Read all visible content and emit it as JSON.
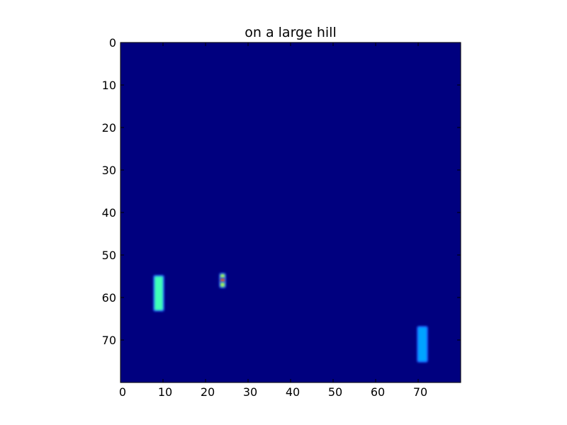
{
  "chart_data": {
    "type": "heatmap",
    "title": "on a large hill",
    "xlabel": "",
    "ylabel": "",
    "xlim": [
      0,
      80
    ],
    "ylim": [
      80,
      0
    ],
    "grid": false,
    "x_ticks": [
      0,
      10,
      20,
      30,
      40,
      50,
      60,
      70
    ],
    "y_ticks": [
      0,
      10,
      20,
      30,
      40,
      50,
      60,
      70
    ],
    "colormap": "jet",
    "background_color": "#00007f",
    "blobs": [
      {
        "x_range": [
          8,
          10
        ],
        "y_range": [
          55,
          63
        ],
        "color": "#40ffb8"
      },
      {
        "x_range": [
          70,
          72
        ],
        "y_range": [
          67,
          75
        ],
        "color": "#00a4ff"
      },
      {
        "x_range": [
          23.5,
          24.5
        ],
        "y_range": [
          54.5,
          55.5
        ],
        "color": "#a8ff50"
      },
      {
        "x_range": [
          23.5,
          24.5
        ],
        "y_range": [
          55.6,
          56.4
        ],
        "color": "#ff5a00"
      },
      {
        "x_range": [
          23.5,
          24.5
        ],
        "y_range": [
          56.5,
          57.5
        ],
        "color": "#a8ff50"
      }
    ]
  }
}
